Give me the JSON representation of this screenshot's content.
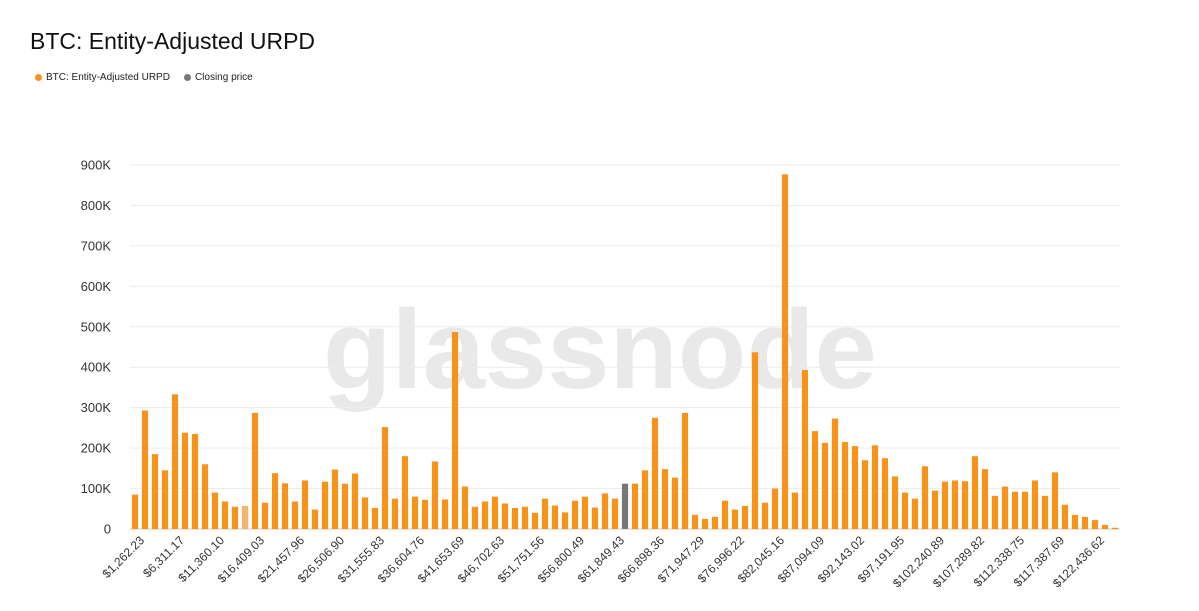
{
  "chart_data": {
    "type": "bar",
    "title": "BTC: Entity-Adjusted URPD",
    "xlabel": "",
    "ylabel": "",
    "ylim": [
      0,
      900000
    ],
    "yticks": [
      0,
      100000,
      200000,
      300000,
      400000,
      500000,
      600000,
      700000,
      800000,
      900000
    ],
    "ytick_labels": [
      "0",
      "100K",
      "200K",
      "300K",
      "400K",
      "500K",
      "600K",
      "700K",
      "800K",
      "900K"
    ],
    "xtick_labels": [
      "$1,262.23",
      "$6,311.17",
      "$11,360.10",
      "$16,409.03",
      "$21,457.96",
      "$26,506.90",
      "$31,555.83",
      "$36,604.76",
      "$41,653.69",
      "$46,702.63",
      "$51,751.56",
      "$56,800.49",
      "$61,849.43",
      "$66,898.36",
      "$71,947.29",
      "$76,996.22",
      "$82,045.16",
      "$87,094.09",
      "$92,143.02",
      "$97,191.95",
      "$102,240.89",
      "$107,289.82",
      "$112,338.75",
      "$117,387.69",
      "$122,436.62"
    ],
    "bucket_start": 1262.23,
    "bucket_step": 1009.79,
    "grid": true,
    "legend_position": "top-left",
    "series": [
      {
        "name": "BTC: Entity-Adjusted URPD",
        "color": "#f7931a",
        "values": [
          85000,
          293000,
          185000,
          145000,
          333000,
          238000,
          235000,
          160000,
          90000,
          68000,
          55000,
          57000,
          287000,
          65000,
          138000,
          113000,
          68000,
          120000,
          48000,
          117000,
          147000,
          112000,
          137000,
          78000,
          52000,
          252000,
          75000,
          180000,
          80000,
          72000,
          167000,
          73000,
          487000,
          105000,
          55000,
          68000,
          80000,
          63000,
          52000,
          55000,
          40000,
          75000,
          58000,
          41000,
          70000,
          80000,
          53000,
          88000,
          75000,
          167000,
          112000,
          145000,
          275000,
          148000,
          127000,
          287000,
          35000,
          25000,
          30000,
          70000,
          48000,
          57000,
          437000,
          65000,
          100000,
          877000,
          90000,
          393000,
          242000,
          213000,
          273000,
          215000,
          205000,
          170000,
          207000,
          175000,
          130000,
          90000,
          75000,
          155000,
          95000,
          117000,
          120000,
          118000,
          180000,
          148000,
          82000,
          105000,
          92000,
          92000,
          120000,
          82000,
          140000,
          60000,
          35000,
          30000,
          22000,
          10000,
          3000
        ]
      },
      {
        "name": "Closing price",
        "color": "#777777",
        "index": 49,
        "value": 112000
      }
    ],
    "highlight": {
      "index": 11,
      "color": "#f5b46c"
    }
  },
  "watermark": "glassnode"
}
